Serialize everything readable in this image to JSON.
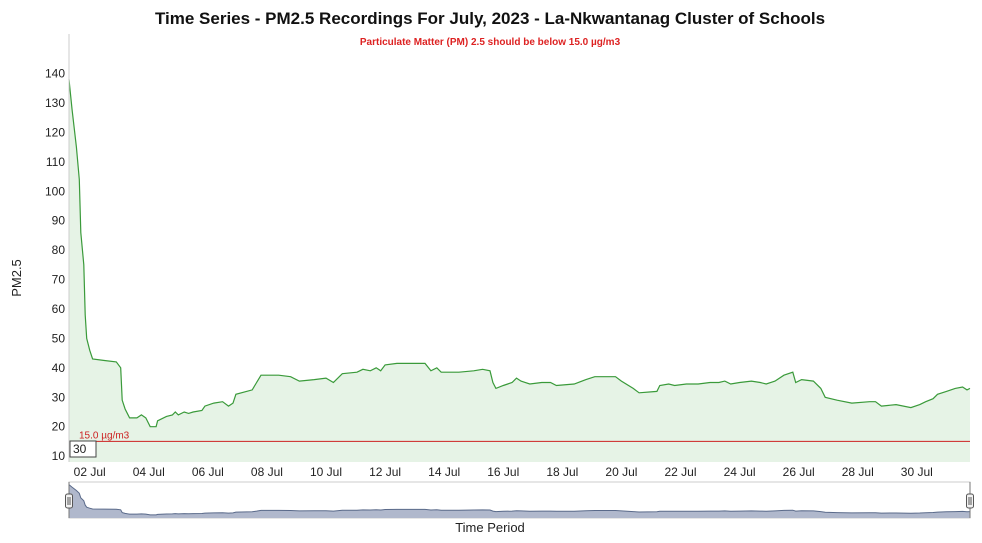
{
  "chart_data": {
    "type": "area",
    "title": "Time Series - PM2.5 Recordings For July, 2023 - La-Nkwantanag Cluster of Schools",
    "subtitle": "Particulate Matter (PM) 2.5 should be below 15.0 µg/m3",
    "ylabel": "PM2.5",
    "xlabel": "Time Period",
    "ylim": [
      8,
      148
    ],
    "xlim": [
      1.3,
      31.8
    ],
    "y_ticks": [
      10,
      20,
      30,
      40,
      50,
      60,
      70,
      80,
      90,
      100,
      110,
      120,
      130,
      140
    ],
    "x_ticks": [
      {
        "day": 2,
        "label": "02 Jul"
      },
      {
        "day": 4,
        "label": "04 Jul"
      },
      {
        "day": 6,
        "label": "06 Jul"
      },
      {
        "day": 8,
        "label": "08 Jul"
      },
      {
        "day": 10,
        "label": "10 Jul"
      },
      {
        "day": 12,
        "label": "12 Jul"
      },
      {
        "day": 14,
        "label": "14 Jul"
      },
      {
        "day": 16,
        "label": "16 Jul"
      },
      {
        "day": 18,
        "label": "18 Jul"
      },
      {
        "day": 20,
        "label": "20 Jul"
      },
      {
        "day": 22,
        "label": "22 Jul"
      },
      {
        "day": 24,
        "label": "24 Jul"
      },
      {
        "day": 26,
        "label": "26 Jul"
      },
      {
        "day": 28,
        "label": "28 Jul"
      },
      {
        "day": 30,
        "label": "30 Jul"
      }
    ],
    "grid": false,
    "legend": "none",
    "series": [
      {
        "color": "#3a9a3a",
        "fill": "#e6f3e6",
        "points": [
          [
            1.3,
            138
          ],
          [
            1.4,
            128
          ],
          [
            1.55,
            115
          ],
          [
            1.65,
            104
          ],
          [
            1.7,
            86
          ],
          [
            1.8,
            75
          ],
          [
            1.85,
            58
          ],
          [
            1.9,
            50
          ],
          [
            2.0,
            46
          ],
          [
            2.1,
            43
          ],
          [
            2.5,
            42.5
          ],
          [
            2.9,
            42
          ],
          [
            3.05,
            40
          ],
          [
            3.1,
            29
          ],
          [
            3.2,
            26
          ],
          [
            3.35,
            23
          ],
          [
            3.6,
            23
          ],
          [
            3.75,
            24
          ],
          [
            3.9,
            23
          ],
          [
            4.05,
            20
          ],
          [
            4.25,
            20
          ],
          [
            4.3,
            22
          ],
          [
            4.6,
            23.5
          ],
          [
            4.8,
            24
          ],
          [
            4.9,
            25
          ],
          [
            5.0,
            24
          ],
          [
            5.2,
            25
          ],
          [
            5.35,
            24.5
          ],
          [
            5.5,
            25
          ],
          [
            5.8,
            25.5
          ],
          [
            5.9,
            27
          ],
          [
            6.2,
            28
          ],
          [
            6.5,
            28.5
          ],
          [
            6.7,
            27
          ],
          [
            6.85,
            28
          ],
          [
            6.95,
            31
          ],
          [
            7.5,
            32.5
          ],
          [
            7.65,
            35
          ],
          [
            7.8,
            37.5
          ],
          [
            8.4,
            37.5
          ],
          [
            8.8,
            37
          ],
          [
            9.1,
            35.5
          ],
          [
            9.6,
            36
          ],
          [
            10.0,
            36.5
          ],
          [
            10.25,
            35
          ],
          [
            10.55,
            38
          ],
          [
            11.05,
            38.5
          ],
          [
            11.25,
            39.5
          ],
          [
            11.5,
            39
          ],
          [
            11.7,
            40
          ],
          [
            11.85,
            39
          ],
          [
            12.0,
            41
          ],
          [
            12.4,
            41.5
          ],
          [
            13.35,
            41.5
          ],
          [
            13.55,
            39
          ],
          [
            13.75,
            40
          ],
          [
            13.9,
            38.5
          ],
          [
            14.5,
            38.5
          ],
          [
            15.0,
            39
          ],
          [
            15.3,
            39.5
          ],
          [
            15.55,
            39
          ],
          [
            15.65,
            35
          ],
          [
            15.75,
            33
          ],
          [
            16.0,
            34
          ],
          [
            16.3,
            35
          ],
          [
            16.45,
            36.5
          ],
          [
            16.6,
            35.5
          ],
          [
            16.9,
            34.5
          ],
          [
            17.3,
            35
          ],
          [
            17.6,
            35
          ],
          [
            17.8,
            34
          ],
          [
            18.4,
            34.5
          ],
          [
            18.8,
            36
          ],
          [
            19.1,
            37
          ],
          [
            19.8,
            37
          ],
          [
            20.0,
            35.5
          ],
          [
            20.4,
            33
          ],
          [
            20.6,
            31.5
          ],
          [
            21.2,
            32
          ],
          [
            21.3,
            34
          ],
          [
            21.6,
            34.5
          ],
          [
            21.8,
            34
          ],
          [
            22.2,
            34.5
          ],
          [
            22.6,
            34.5
          ],
          [
            23.0,
            35
          ],
          [
            23.3,
            35
          ],
          [
            23.5,
            35.5
          ],
          [
            23.7,
            34.5
          ],
          [
            24.0,
            35
          ],
          [
            24.4,
            35.5
          ],
          [
            24.7,
            35
          ],
          [
            24.9,
            34.5
          ],
          [
            25.2,
            35.5
          ],
          [
            25.5,
            37.5
          ],
          [
            25.8,
            38.5
          ],
          [
            25.9,
            35
          ],
          [
            26.1,
            36
          ],
          [
            26.5,
            35.5
          ],
          [
            26.75,
            33
          ],
          [
            26.9,
            30
          ],
          [
            27.3,
            29
          ],
          [
            27.8,
            28
          ],
          [
            28.4,
            28.5
          ],
          [
            28.6,
            28.5
          ],
          [
            28.8,
            27
          ],
          [
            29.3,
            27.5
          ],
          [
            29.8,
            26.5
          ],
          [
            30.1,
            27.5
          ],
          [
            30.3,
            28.5
          ],
          [
            30.55,
            29.5
          ],
          [
            30.7,
            31
          ],
          [
            31.0,
            32
          ],
          [
            31.3,
            33
          ],
          [
            31.55,
            33.5
          ],
          [
            31.7,
            32.5
          ],
          [
            31.8,
            33
          ]
        ]
      }
    ],
    "reference_line": {
      "value": 15,
      "label": "15.0 µg/m3",
      "color": "#cc2222"
    },
    "zoom_input": "30"
  }
}
